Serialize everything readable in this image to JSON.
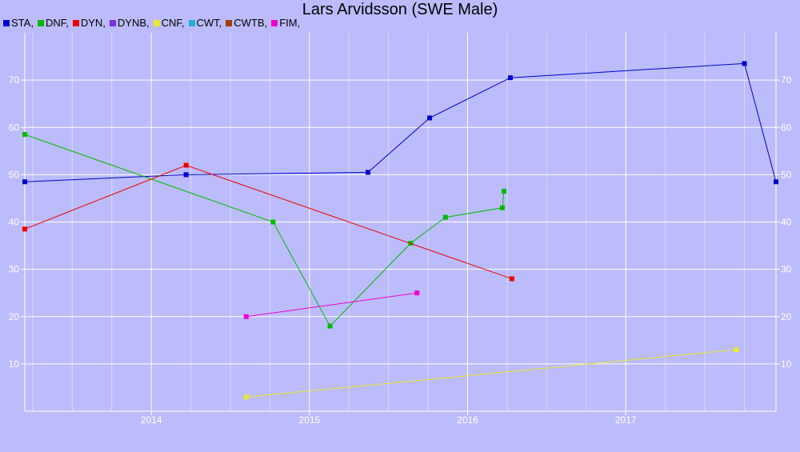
{
  "chart_data": {
    "type": "line",
    "title": "Lars Arvidsson (SWE Male)",
    "xlabel": "",
    "ylabel": "",
    "xlim": [
      2013.2,
      2017.95
    ],
    "ylim": [
      0,
      80
    ],
    "x_ticks": [
      "2014",
      "2015",
      "2016",
      "2017"
    ],
    "y_ticks": [
      10,
      20,
      30,
      40,
      50,
      60,
      70
    ],
    "grid": true,
    "legend_position": "top-left",
    "series": [
      {
        "name": "STA,",
        "color": "#0000cc",
        "points": [
          [
            2013.2,
            48.5
          ],
          [
            2014.22,
            50
          ],
          [
            2015.37,
            50.5
          ],
          [
            2015.76,
            62
          ],
          [
            2016.27,
            70.5
          ],
          [
            2017.75,
            73.5
          ],
          [
            2017.95,
            48.5
          ]
        ]
      },
      {
        "name": "DNF,",
        "color": "#00bb00",
        "points": [
          [
            2013.2,
            58.5
          ],
          [
            2014.77,
            40
          ],
          [
            2015.13,
            18
          ],
          [
            2015.64,
            35.5
          ],
          [
            2015.86,
            41
          ],
          [
            2016.22,
            43
          ],
          [
            2016.23,
            46.5
          ]
        ]
      },
      {
        "name": "DYN,",
        "color": "#ee0000",
        "points": [
          [
            2013.2,
            38.5
          ],
          [
            2014.22,
            52
          ],
          [
            2016.28,
            28
          ]
        ]
      },
      {
        "name": "DYNB,",
        "color": "#7a30e0",
        "points": []
      },
      {
        "name": "CNF,",
        "color": "#e8e830",
        "points": [
          [
            2014.6,
            3
          ],
          [
            2017.7,
            13
          ]
        ]
      },
      {
        "name": "CWT,",
        "color": "#20b0d0",
        "points": []
      },
      {
        "name": "CWTB,",
        "color": "#a04000",
        "points": []
      },
      {
        "name": "FIM,",
        "color": "#ee00cc",
        "points": [
          [
            2014.6,
            20
          ],
          [
            2015.68,
            25
          ]
        ]
      }
    ]
  }
}
